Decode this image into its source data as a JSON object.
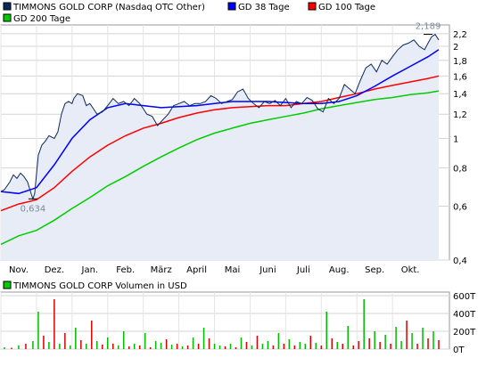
{
  "chart_data": [
    {
      "type": "line",
      "title": "",
      "legend": [
        {
          "label": "TIMMONS GOLD CORP (Nasdaq OTC Other)",
          "color": "#0b2a5a"
        },
        {
          "label": "GD 38 Tage",
          "color": "#0000ff"
        },
        {
          "label": "GD 100 Tage",
          "color": "#ff0000"
        },
        {
          "label": "GD 200 Tage",
          "color": "#00cc00"
        }
      ],
      "legend_placement": "top",
      "x_labels": [
        "Nov.",
        "Dez.",
        "Jan.",
        "Feb.",
        "März",
        "April",
        "Mai",
        "Juni",
        "Juli",
        "Aug.",
        "Sep.",
        "Okt."
      ],
      "x_range": [
        0,
        12.6
      ],
      "y_scale": "log",
      "y_ticks": [
        "0,4",
        "0,6",
        "0,8",
        "1",
        "1,2",
        "1,4",
        "1,6",
        "1,8",
        "2",
        "2,2"
      ],
      "y_tick_values": [
        0.4,
        0.6,
        0.8,
        1.0,
        1.2,
        1.4,
        1.6,
        1.8,
        2.0,
        2.2
      ],
      "ylim": [
        0.4,
        2.35
      ],
      "grid": true,
      "annotations": [
        {
          "label": "2,189",
          "x": 12.0,
          "y": 2.189
        },
        {
          "label": "0,634",
          "x": 0.9,
          "y": 0.634
        }
      ],
      "series": [
        {
          "name": "TIMMONS GOLD CORP (Nasdaq OTC Other)",
          "color": "#0b2a5a",
          "fill": "#e8ecf6",
          "x": [
            0,
            0.1,
            0.25,
            0.35,
            0.45,
            0.55,
            0.65,
            0.75,
            0.85,
            0.9,
            0.95,
            1.05,
            1.15,
            1.25,
            1.35,
            1.5,
            1.6,
            1.7,
            1.8,
            1.9,
            2.0,
            2.05,
            2.15,
            2.3,
            2.4,
            2.5,
            2.6,
            2.7,
            2.85,
            3.0,
            3.15,
            3.3,
            3.45,
            3.6,
            3.75,
            3.9,
            4.0,
            4.1,
            4.25,
            4.4,
            4.55,
            4.7,
            4.85,
            5.0,
            5.15,
            5.3,
            5.45,
            5.6,
            5.75,
            5.9,
            6.05,
            6.2,
            6.35,
            6.5,
            6.65,
            6.8,
            6.95,
            7.1,
            7.25,
            7.4,
            7.55,
            7.7,
            7.85,
            8.0,
            8.15,
            8.3,
            8.45,
            8.6,
            8.75,
            8.9,
            9.05,
            9.2,
            9.35,
            9.5,
            9.65,
            9.8,
            9.95,
            10.1,
            10.25,
            10.4,
            10.55,
            10.7,
            10.85,
            11.0,
            11.15,
            11.3,
            11.45,
            11.6,
            11.75,
            11.9,
            12.0,
            12.1,
            12.2,
            12.3
          ],
          "values": [
            0.67,
            0.68,
            0.72,
            0.76,
            0.74,
            0.77,
            0.75,
            0.72,
            0.66,
            0.634,
            0.66,
            0.88,
            0.95,
            0.98,
            1.02,
            1.0,
            1.05,
            1.2,
            1.3,
            1.32,
            1.3,
            1.35,
            1.4,
            1.38,
            1.28,
            1.3,
            1.25,
            1.2,
            1.22,
            1.28,
            1.35,
            1.3,
            1.32,
            1.28,
            1.35,
            1.3,
            1.25,
            1.2,
            1.18,
            1.1,
            1.15,
            1.2,
            1.28,
            1.3,
            1.32,
            1.28,
            1.3,
            1.3,
            1.32,
            1.38,
            1.35,
            1.3,
            1.32,
            1.34,
            1.42,
            1.45,
            1.35,
            1.3,
            1.26,
            1.32,
            1.3,
            1.33,
            1.28,
            1.35,
            1.26,
            1.32,
            1.3,
            1.36,
            1.33,
            1.25,
            1.22,
            1.35,
            1.3,
            1.35,
            1.5,
            1.45,
            1.4,
            1.55,
            1.7,
            1.75,
            1.65,
            1.8,
            1.75,
            1.85,
            1.95,
            2.02,
            2.05,
            2.1,
            2.0,
            1.95,
            2.05,
            2.15,
            2.189,
            2.1
          ]
        },
        {
          "name": "GD 38 Tage",
          "color": "#0000ff",
          "x": [
            0,
            0.5,
            1.0,
            1.5,
            2.0,
            2.5,
            3.0,
            3.5,
            4.0,
            4.5,
            5.0,
            5.5,
            6.0,
            6.5,
            7.0,
            7.5,
            8.0,
            8.5,
            9.0,
            9.5,
            10.0,
            10.5,
            11.0,
            11.5,
            12.0,
            12.3
          ],
          "values": [
            0.67,
            0.66,
            0.69,
            0.82,
            1.0,
            1.15,
            1.26,
            1.3,
            1.28,
            1.26,
            1.27,
            1.28,
            1.3,
            1.32,
            1.32,
            1.32,
            1.31,
            1.3,
            1.3,
            1.32,
            1.38,
            1.48,
            1.6,
            1.72,
            1.85,
            1.95
          ]
        },
        {
          "name": "GD 100 Tage",
          "color": "#ff0000",
          "x": [
            0,
            0.5,
            1.0,
            1.5,
            2.0,
            2.5,
            3.0,
            3.5,
            4.0,
            4.5,
            5.0,
            5.5,
            6.0,
            6.5,
            7.0,
            7.5,
            8.0,
            8.5,
            9.0,
            9.5,
            10.0,
            10.5,
            11.0,
            11.5,
            12.0,
            12.3
          ],
          "values": [
            0.58,
            0.61,
            0.63,
            0.69,
            0.78,
            0.87,
            0.95,
            1.02,
            1.08,
            1.12,
            1.17,
            1.21,
            1.24,
            1.26,
            1.27,
            1.28,
            1.28,
            1.3,
            1.32,
            1.36,
            1.4,
            1.45,
            1.49,
            1.53,
            1.57,
            1.6
          ]
        },
        {
          "name": "GD 200 Tage",
          "color": "#00cc00",
          "x": [
            0,
            0.5,
            1.0,
            1.5,
            2.0,
            2.5,
            3.0,
            3.5,
            4.0,
            4.5,
            5.0,
            5.5,
            6.0,
            6.5,
            7.0,
            7.5,
            8.0,
            8.5,
            9.0,
            9.5,
            10.0,
            10.5,
            11.0,
            11.5,
            12.0,
            12.3
          ],
          "values": [
            0.45,
            0.48,
            0.5,
            0.54,
            0.59,
            0.64,
            0.7,
            0.75,
            0.81,
            0.87,
            0.93,
            0.99,
            1.04,
            1.08,
            1.12,
            1.15,
            1.18,
            1.21,
            1.25,
            1.28,
            1.31,
            1.34,
            1.36,
            1.39,
            1.41,
            1.43
          ]
        }
      ]
    },
    {
      "type": "bar",
      "legend": [
        {
          "label": "TIMMONS GOLD CORP Volumen in USD",
          "color": "#00cc00"
        }
      ],
      "y_ticks": [
        "0T",
        "200T",
        "400T",
        "600T"
      ],
      "y_tick_values": [
        0,
        200,
        400,
        600
      ],
      "ylim": [
        0,
        640
      ],
      "grid": true,
      "x_range": [
        0,
        12.6
      ],
      "series": [
        {
          "name": "TIMMONS GOLD CORP Volumen in USD",
          "up_color": "#00bb00",
          "down_color": "#dd0000",
          "x": [
            0.1,
            0.3,
            0.5,
            0.7,
            0.9,
            1.05,
            1.2,
            1.35,
            1.5,
            1.65,
            1.8,
            1.95,
            2.1,
            2.25,
            2.4,
            2.55,
            2.7,
            2.85,
            3.0,
            3.15,
            3.3,
            3.45,
            3.6,
            3.75,
            3.9,
            4.05,
            4.2,
            4.35,
            4.5,
            4.65,
            4.8,
            4.95,
            5.1,
            5.25,
            5.4,
            5.55,
            5.7,
            5.85,
            6.0,
            6.15,
            6.3,
            6.45,
            6.6,
            6.75,
            6.9,
            7.05,
            7.2,
            7.35,
            7.5,
            7.65,
            7.8,
            7.95,
            8.1,
            8.25,
            8.4,
            8.55,
            8.7,
            8.85,
            9.0,
            9.15,
            9.3,
            9.45,
            9.6,
            9.75,
            9.9,
            10.05,
            10.2,
            10.35,
            10.5,
            10.65,
            10.8,
            10.95,
            11.1,
            11.25,
            11.4,
            11.55,
            11.7,
            11.85,
            12.0,
            12.15,
            12.3
          ],
          "values": [
            20,
            15,
            40,
            60,
            90,
            420,
            150,
            80,
            560,
            60,
            180,
            40,
            240,
            100,
            60,
            320,
            90,
            50,
            130,
            60,
            40,
            200,
            30,
            60,
            40,
            180,
            20,
            90,
            70,
            110,
            50,
            60,
            30,
            40,
            130,
            60,
            240,
            120,
            60,
            40,
            30,
            60,
            20,
            130,
            80,
            40,
            150,
            60,
            90,
            40,
            180,
            60,
            110,
            40,
            80,
            60,
            150,
            70,
            40,
            420,
            120,
            80,
            60,
            260,
            40,
            90,
            560,
            120,
            200,
            80,
            160,
            60,
            250,
            90,
            320,
            180,
            60,
            240,
            120,
            200,
            100
          ],
          "direction": [
            "u",
            "d",
            "u",
            "d",
            "u",
            "u",
            "d",
            "u",
            "d",
            "u",
            "d",
            "u",
            "u",
            "d",
            "u",
            "d",
            "u",
            "d",
            "u",
            "d",
            "u",
            "u",
            "d",
            "u",
            "d",
            "u",
            "d",
            "u",
            "u",
            "d",
            "u",
            "d",
            "u",
            "d",
            "u",
            "d",
            "u",
            "d",
            "u",
            "u",
            "d",
            "u",
            "d",
            "u",
            "d",
            "u",
            "d",
            "u",
            "u",
            "d",
            "u",
            "d",
            "u",
            "d",
            "u",
            "u",
            "d",
            "u",
            "d",
            "u",
            "d",
            "u",
            "d",
            "u",
            "d",
            "d",
            "u",
            "d",
            "u",
            "d",
            "u",
            "d",
            "u",
            "u",
            "d",
            "u",
            "d",
            "u",
            "d",
            "u",
            "d"
          ]
        }
      ]
    }
  ]
}
